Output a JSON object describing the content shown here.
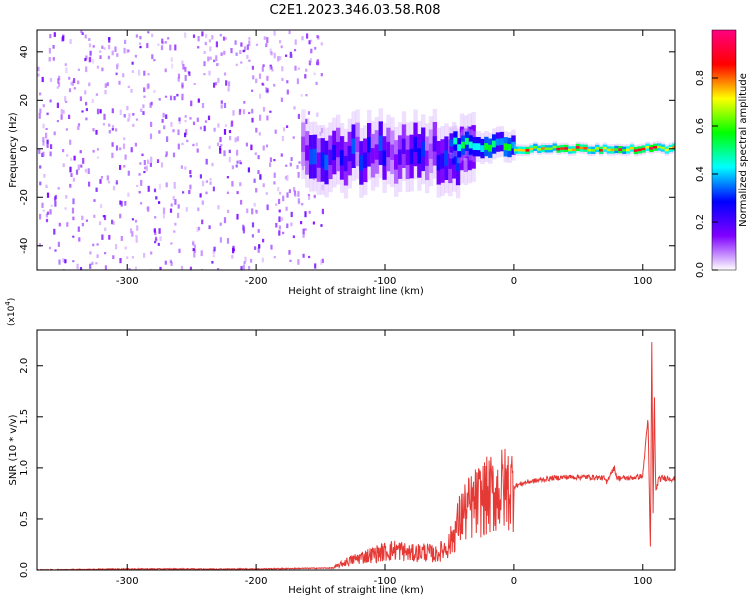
{
  "title": "C2E1.2023.346.03.58.R08",
  "chart_data": [
    {
      "type": "heatmap",
      "xlabel": "Height of straight line (km)",
      "ylabel": "Frequency (Hz)",
      "xlim": [
        -370,
        125
      ],
      "ylim": [
        -50,
        49
      ],
      "xticks": [
        -300,
        -200,
        -100,
        0,
        100
      ],
      "yticks": [
        -40,
        -20,
        0,
        20,
        40
      ],
      "colorbar": {
        "label": "Normalized spectral amplitude",
        "range": [
          0,
          1
        ],
        "ticks": [
          0.0,
          0.2,
          0.4,
          0.6,
          0.8
        ],
        "tick_labels": [
          "0.0",
          "0.2",
          "0.4",
          "0.6",
          "0.8"
        ],
        "colormap": [
          "#ffffff",
          "#7f00ff",
          "#0000ff",
          "#00ffff",
          "#00ff00",
          "#ffff00",
          "#ff0000",
          "#ff0080"
        ]
      },
      "regions": [
        {
          "x_range": [
            -370,
            -150
          ],
          "y_range": [
            -50,
            49
          ],
          "amplitude": [
            0.05,
            0.18
          ],
          "description": "broadband noise"
        },
        {
          "x_range": [
            -165,
            -30
          ],
          "center_freq": -2,
          "freq_width": 18,
          "amplitude": [
            0.1,
            0.35
          ]
        },
        {
          "x_range": [
            -50,
            0
          ],
          "center_freq": 2,
          "freq_width": 8,
          "amplitude": [
            0.3,
            0.6
          ]
        },
        {
          "x_range": [
            0,
            125
          ],
          "center_freq": 0,
          "freq_width": 3,
          "amplitude": [
            0.6,
            0.95
          ]
        }
      ]
    },
    {
      "type": "line",
      "xlabel": "Height of straight line (km)",
      "ylabel": "SNR (10 * v/v)",
      "y_multiplier_label": "(x10",
      "y_multiplier_exp": "4",
      "y_multiplier_close": ")",
      "xlim": [
        -370,
        125
      ],
      "ylim": [
        0,
        2.35
      ],
      "xticks": [
        -300,
        -200,
        -100,
        0,
        100
      ],
      "yticks": [
        0.0,
        0.5,
        1.0,
        1.5,
        2.0
      ],
      "ytick_labels": [
        "0.0",
        "0.5",
        "1.0",
        "1.5",
        "2.0"
      ],
      "color": "#e53935",
      "series": [
        {
          "x": [
            -370,
            -300,
            -200,
            -140,
            -130,
            -120,
            -110,
            -100,
            -90,
            -80,
            -70,
            -60,
            -50,
            -45,
            -40,
            -35,
            -30,
            -25,
            -20,
            -15,
            -10,
            -5,
            0,
            10,
            20,
            30,
            40,
            50,
            60,
            70,
            72,
            75,
            78,
            80,
            90,
            100,
            104,
            106,
            107,
            108,
            109,
            110,
            112,
            115,
            120,
            125
          ],
          "y": [
            0.0,
            0.01,
            0.01,
            0.02,
            0.08,
            0.12,
            0.15,
            0.18,
            0.2,
            0.16,
            0.18,
            0.15,
            0.25,
            0.4,
            0.55,
            0.6,
            0.65,
            0.7,
            0.72,
            0.75,
            0.78,
            0.8,
            0.82,
            0.86,
            0.88,
            0.9,
            0.91,
            0.91,
            0.91,
            0.9,
            0.85,
            0.95,
            1.0,
            0.9,
            0.9,
            0.92,
            1.5,
            0.15,
            2.3,
            0.5,
            1.8,
            0.75,
            0.88,
            0.9,
            0.9,
            0.89
          ]
        }
      ]
    }
  ]
}
